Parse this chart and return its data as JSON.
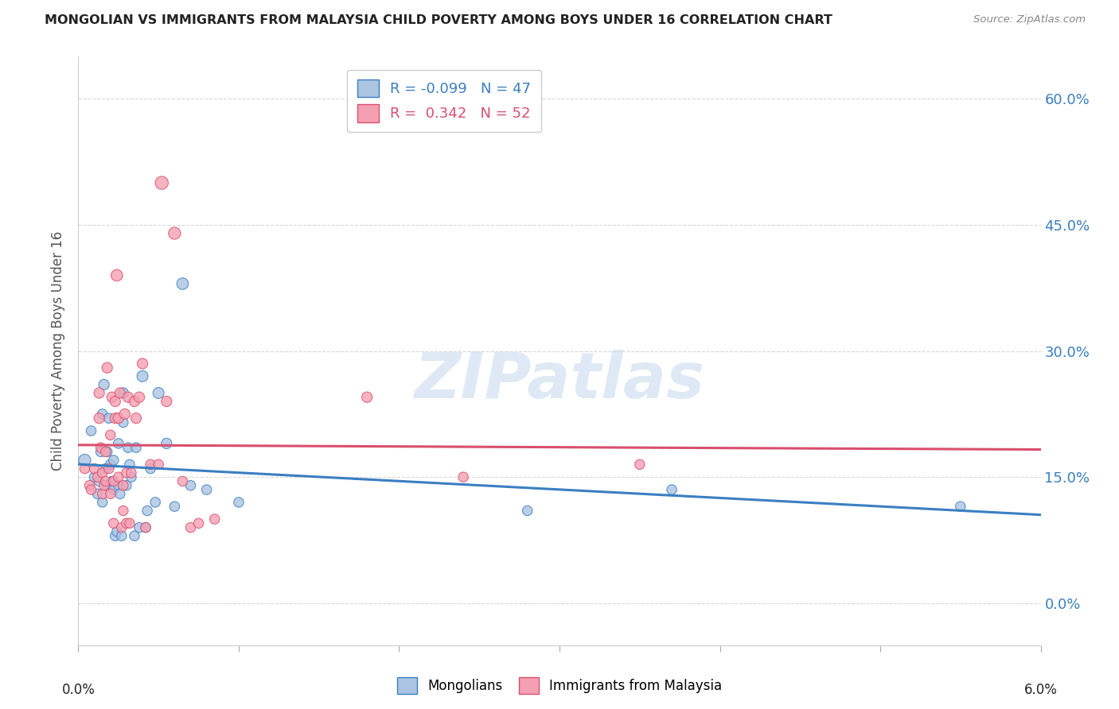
{
  "title": "MONGOLIAN VS IMMIGRANTS FROM MALAYSIA CHILD POVERTY AMONG BOYS UNDER 16 CORRELATION CHART",
  "source": "Source: ZipAtlas.com",
  "ylabel": "Child Poverty Among Boys Under 16",
  "ytick_values": [
    0.0,
    15.0,
    30.0,
    45.0,
    60.0
  ],
  "xlim": [
    0.0,
    6.0
  ],
  "ylim": [
    -5.0,
    65.0
  ],
  "mongolians_R": "-0.099",
  "mongolians_N": "47",
  "malaysia_R": "0.342",
  "malaysia_N": "52",
  "mongolian_color": "#aac4e2",
  "malaysia_color": "#f5a0b2",
  "mongolian_line_color": "#3a7fc1",
  "malaysia_line_color": "#d94f6e",
  "dashed_line_color": "#e8a0b0",
  "background_color": "#ffffff",
  "grid_color": "#d8d8d8",
  "legend_label_1": "Mongolians",
  "legend_label_2": "Immigrants from Malaysia",
  "mon_x": [
    0.04,
    0.08,
    0.1,
    0.12,
    0.13,
    0.14,
    0.15,
    0.15,
    0.16,
    0.17,
    0.18,
    0.18,
    0.19,
    0.2,
    0.21,
    0.22,
    0.22,
    0.23,
    0.24,
    0.25,
    0.25,
    0.26,
    0.27,
    0.28,
    0.28,
    0.3,
    0.31,
    0.32,
    0.33,
    0.35,
    0.36,
    0.38,
    0.4,
    0.42,
    0.43,
    0.45,
    0.48,
    0.5,
    0.55,
    0.6,
    0.65,
    0.7,
    0.8,
    1.0,
    2.8,
    3.7,
    5.5
  ],
  "mon_y": [
    17.0,
    20.5,
    15.0,
    13.0,
    14.5,
    18.0,
    22.5,
    12.0,
    26.0,
    16.0,
    14.0,
    18.0,
    22.0,
    16.5,
    14.5,
    13.5,
    17.0,
    8.0,
    8.5,
    14.0,
    19.0,
    13.0,
    8.0,
    25.0,
    21.5,
    14.0,
    18.5,
    16.5,
    15.0,
    8.0,
    18.5,
    9.0,
    27.0,
    9.0,
    11.0,
    16.0,
    12.0,
    25.0,
    19.0,
    11.5,
    38.0,
    14.0,
    13.5,
    12.0,
    11.0,
    13.5,
    11.5
  ],
  "mal_x": [
    0.04,
    0.07,
    0.08,
    0.1,
    0.12,
    0.13,
    0.13,
    0.14,
    0.15,
    0.15,
    0.16,
    0.17,
    0.17,
    0.18,
    0.19,
    0.2,
    0.2,
    0.21,
    0.22,
    0.22,
    0.23,
    0.23,
    0.24,
    0.25,
    0.25,
    0.26,
    0.27,
    0.28,
    0.28,
    0.29,
    0.3,
    0.3,
    0.31,
    0.32,
    0.33,
    0.35,
    0.36,
    0.38,
    0.4,
    0.42,
    0.45,
    0.5,
    0.52,
    0.55,
    0.6,
    0.65,
    0.7,
    0.75,
    0.85,
    1.8,
    2.4,
    3.5
  ],
  "mal_y": [
    16.0,
    14.0,
    13.5,
    16.0,
    15.0,
    25.0,
    22.0,
    18.5,
    13.0,
    15.5,
    14.0,
    14.5,
    18.0,
    28.0,
    16.0,
    13.0,
    20.0,
    24.5,
    9.5,
    14.5,
    22.0,
    24.0,
    39.0,
    15.0,
    22.0,
    25.0,
    9.0,
    11.0,
    14.0,
    22.5,
    9.5,
    15.5,
    24.5,
    9.5,
    15.5,
    24.0,
    22.0,
    24.5,
    28.5,
    9.0,
    16.5,
    16.5,
    50.0,
    24.0,
    44.0,
    14.5,
    9.0,
    9.5,
    10.0,
    24.5,
    15.0,
    16.5
  ],
  "mon_s": [
    120,
    80,
    80,
    80,
    80,
    80,
    80,
    80,
    90,
    80,
    80,
    80,
    80,
    80,
    80,
    80,
    80,
    80,
    80,
    80,
    80,
    80,
    80,
    90,
    80,
    80,
    80,
    80,
    80,
    80,
    80,
    80,
    100,
    80,
    80,
    80,
    80,
    100,
    90,
    80,
    110,
    80,
    80,
    80,
    80,
    80,
    80
  ],
  "mal_s": [
    80,
    80,
    80,
    80,
    80,
    90,
    90,
    80,
    80,
    80,
    80,
    80,
    80,
    90,
    80,
    80,
    80,
    90,
    80,
    80,
    90,
    90,
    110,
    80,
    90,
    90,
    80,
    80,
    80,
    90,
    80,
    80,
    90,
    80,
    80,
    90,
    90,
    90,
    90,
    80,
    80,
    80,
    140,
    90,
    120,
    80,
    80,
    80,
    80,
    90,
    80,
    80
  ]
}
